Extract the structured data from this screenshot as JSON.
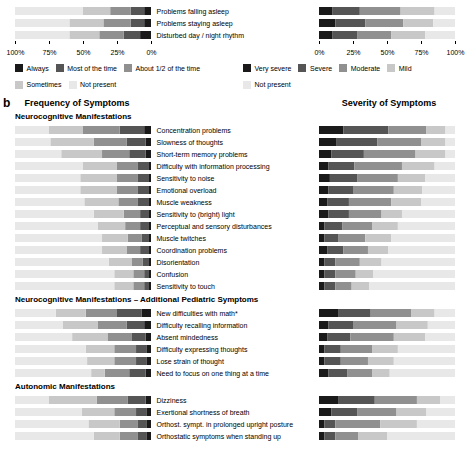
{
  "chart_data": [
    {
      "type": "bar",
      "orientation": "horizontal",
      "stacked": true,
      "legend": "bottom",
      "categories": [
        "Problems falling asleep",
        "Problems staying asleep",
        "Disturbed day / night rhythm"
      ],
      "series": [
        {
          "name": "Always",
          "color": "#1a1a1a",
          "values": [
            5,
            5,
            8
          ]
        },
        {
          "name": "Most of the time",
          "color": "#555555",
          "values": [
            10,
            10,
            12
          ]
        },
        {
          "name": "About 1/2 of the time",
          "color": "#909090",
          "values": [
            15,
            20,
            18
          ]
        },
        {
          "name": "Sometimes",
          "color": "#c8c8c8",
          "values": [
            20,
            25,
            22
          ]
        },
        {
          "name": "Not present",
          "color": "#e8e8e8",
          "values": [
            50,
            40,
            40
          ]
        }
      ],
      "xlim": [
        100,
        0
      ],
      "xticks": [
        {
          "value": 0,
          "label": "0%"
        },
        {
          "value": 25,
          "label": "25%"
        },
        {
          "value": 50,
          "label": "50%"
        },
        {
          "value": 75,
          "label": "75%"
        },
        {
          "value": 100,
          "label": "100%"
        }
      ]
    },
    {
      "type": "bar",
      "orientation": "horizontal",
      "stacked": true,
      "legend": "bottom",
      "categories": [
        "Problems falling asleep",
        "Problems staying asleep",
        "Disturbed day / night rhythm"
      ],
      "series": [
        {
          "name": "Very severe",
          "color": "#1a1a1a",
          "values": [
            10,
            12,
            10
          ]
        },
        {
          "name": "Severe",
          "color": "#555555",
          "values": [
            20,
            22,
            18
          ]
        },
        {
          "name": "Moderate",
          "color": "#909090",
          "values": [
            30,
            28,
            25
          ]
        },
        {
          "name": "Mild",
          "color": "#c8c8c8",
          "values": [
            25,
            22,
            25
          ]
        },
        {
          "name": "Not present",
          "color": "#e8e8e8",
          "values": [
            15,
            16,
            22
          ]
        }
      ],
      "xlim": [
        0,
        100
      ],
      "xticks": [
        {
          "value": 0,
          "label": "0%"
        },
        {
          "value": 25,
          "label": "25%"
        },
        {
          "value": 50,
          "label": "50%"
        },
        {
          "value": 75,
          "label": "75%"
        },
        {
          "value": 100,
          "label": "100%"
        }
      ]
    },
    {
      "type": "bar",
      "orientation": "horizontal",
      "stacked": true,
      "tick_labels": "y",
      "annotations": [
        "b"
      ],
      "title": "Frequency of Symptoms",
      "subtitle": "Neurocognitive Manifestations",
      "categories": [
        "Concentration problems",
        "Slowness of thoughts",
        "Short-term memory problems",
        "Difficulty with information processing",
        "Sensitivity to noise",
        "Emotional overload",
        "Muscle weakness",
        "Sensitivity to (bright) light",
        "Perceptual and sensory disturbances",
        "Muscle twitches",
        "Coordination problems",
        "Disorientation",
        "Confusion",
        "Sensitivity to touch"
      ],
      "series": [
        {
          "name": "Always",
          "color": "#1a1a1a",
          "values": [
            5,
            4,
            4,
            2,
            2,
            2,
            2,
            2,
            2,
            2,
            2,
            2,
            2,
            2
          ]
        },
        {
          "name": "Most of the time",
          "color": "#555555",
          "values": [
            18,
            14,
            12,
            8,
            8,
            8,
            8,
            6,
            6,
            5,
            6,
            4,
            3,
            3
          ]
        },
        {
          "name": "About 1/2 of the time",
          "color": "#909090",
          "values": [
            27,
            24,
            20,
            15,
            15,
            15,
            14,
            12,
            11,
            10,
            10,
            8,
            8,
            8
          ]
        },
        {
          "name": "Sometimes",
          "color": "#c8c8c8",
          "values": [
            25,
            32,
            30,
            25,
            27,
            27,
            25,
            22,
            20,
            19,
            18,
            17,
            14,
            14
          ]
        },
        {
          "name": "Not present",
          "color": "#e8e8e8",
          "values": [
            25,
            26,
            34,
            50,
            48,
            48,
            51,
            58,
            61,
            64,
            64,
            69,
            73,
            73
          ]
        }
      ],
      "xlim": [
        100,
        0
      ]
    },
    {
      "type": "bar",
      "orientation": "horizontal",
      "stacked": true,
      "tick_labels": "y",
      "title": "Severity of Symptoms",
      "categories": [
        "Concentration problems",
        "Slowness of thoughts",
        "Short-term memory problems",
        "Difficulty with information processing",
        "Sensitivity to noise",
        "Emotional overload",
        "Muscle weakness",
        "Sensitivity to (bright) light",
        "Perceptual and sensory disturbances",
        "Muscle twitches",
        "Coordination problems",
        "Disorientation",
        "Confusion",
        "Sensitivity to touch"
      ],
      "series": [
        {
          "name": "Very severe",
          "color": "#1a1a1a",
          "values": [
            18,
            13,
            9,
            7,
            8,
            7,
            6,
            7,
            4,
            4,
            6,
            4,
            4,
            4
          ]
        },
        {
          "name": "Severe",
          "color": "#555555",
          "values": [
            33,
            30,
            24,
            19,
            20,
            18,
            16,
            15,
            13,
            10,
            12,
            8,
            8,
            8
          ]
        },
        {
          "name": "Moderate",
          "color": "#909090",
          "values": [
            28,
            32,
            38,
            35,
            30,
            30,
            31,
            24,
            22,
            20,
            18,
            18,
            15,
            12
          ]
        },
        {
          "name": "Mild",
          "color": "#c8c8c8",
          "values": [
            14,
            18,
            22,
            24,
            20,
            21,
            22,
            15,
            19,
            19,
            15,
            16,
            13,
            13
          ]
        },
        {
          "name": "Not present",
          "color": "#e8e8e8",
          "values": [
            7,
            7,
            7,
            15,
            22,
            24,
            25,
            39,
            42,
            47,
            49,
            54,
            60,
            63
          ]
        }
      ],
      "xlim": [
        0,
        100
      ]
    },
    {
      "type": "bar",
      "orientation": "horizontal",
      "stacked": true,
      "tick_labels": "y",
      "subtitle": "Neurocognitive Manifestations – Additional Pediatric Symptoms",
      "categories": [
        "New difficulties with math*",
        "Difficulty recalling information",
        "Absent mindedness",
        "Difficulty expressing thoughts",
        "Lose strain of thought",
        "Need to focus on one thing at a time"
      ],
      "series": [
        {
          "name": "Always",
          "color": "#1a1a1a",
          "values": [
            7,
            5,
            4,
            3,
            3,
            4
          ]
        },
        {
          "name": "Most of the time",
          "color": "#555555",
          "values": [
            18,
            13,
            10,
            8,
            8,
            12
          ]
        },
        {
          "name": "About 1/2 of the time",
          "color": "#909090",
          "values": [
            23,
            21,
            18,
            16,
            16,
            18
          ]
        },
        {
          "name": "Sometimes",
          "color": "#c8c8c8",
          "values": [
            22,
            26,
            26,
            21,
            20,
            10
          ]
        },
        {
          "name": "Not present",
          "color": "#e8e8e8",
          "values": [
            30,
            35,
            42,
            52,
            53,
            56
          ]
        }
      ],
      "xlim": [
        100,
        0
      ]
    },
    {
      "type": "bar",
      "orientation": "horizontal",
      "stacked": true,
      "tick_labels": "y",
      "categories": [
        "New difficulties with math*",
        "Difficulty recalling information",
        "Absent mindedness",
        "Difficulty expressing thoughts",
        "Lose strain of thought",
        "Need to focus on one thing at a time"
      ],
      "series": [
        {
          "name": "Very severe",
          "color": "#1a1a1a",
          "values": [
            14,
            7,
            6,
            4,
            4,
            7
          ]
        },
        {
          "name": "Severe",
          "color": "#555555",
          "values": [
            24,
            18,
            17,
            12,
            12,
            14
          ]
        },
        {
          "name": "Moderate",
          "color": "#909090",
          "values": [
            30,
            32,
            32,
            23,
            20,
            18
          ]
        },
        {
          "name": "Mild",
          "color": "#c8c8c8",
          "values": [
            17,
            23,
            23,
            19,
            19,
            13
          ]
        },
        {
          "name": "Not present",
          "color": "#e8e8e8",
          "values": [
            15,
            20,
            22,
            42,
            45,
            48
          ]
        }
      ],
      "xlim": [
        0,
        100
      ]
    },
    {
      "type": "bar",
      "orientation": "horizontal",
      "stacked": true,
      "tick_labels": "y",
      "subtitle": "Autonomic Manifestations",
      "categories": [
        "Dizziness",
        "Exertional shortness of breath",
        "Orthost. sympt. in prolonged upright posture",
        "Orthostatic symptoms when standing up"
      ],
      "series": [
        {
          "name": "Always",
          "color": "#1a1a1a",
          "values": [
            4,
            3,
            3,
            3
          ]
        },
        {
          "name": "Most of the time",
          "color": "#555555",
          "values": [
            13,
            8,
            7,
            7
          ]
        },
        {
          "name": "About 1/2 of the time",
          "color": "#909090",
          "values": [
            23,
            16,
            13,
            13
          ]
        },
        {
          "name": "Sometimes",
          "color": "#c8c8c8",
          "values": [
            35,
            24,
            23,
            19
          ]
        },
        {
          "name": "Not present",
          "color": "#e8e8e8",
          "values": [
            25,
            49,
            54,
            58
          ]
        }
      ],
      "xlim": [
        100,
        0
      ]
    },
    {
      "type": "bar",
      "orientation": "horizontal",
      "stacked": true,
      "tick_labels": "y",
      "categories": [
        "Dizziness",
        "Exertional shortness of breath",
        "Orthost. sympt. in prolonged upright posture",
        "Orthostatic symptoms when standing up"
      ],
      "series": [
        {
          "name": "Very severe",
          "color": "#1a1a1a",
          "values": [
            14,
            9,
            4,
            4
          ]
        },
        {
          "name": "Severe",
          "color": "#555555",
          "values": [
            27,
            19,
            8,
            8
          ]
        },
        {
          "name": "Moderate",
          "color": "#909090",
          "values": [
            31,
            29,
            33,
            17
          ]
        },
        {
          "name": "Mild",
          "color": "#c8c8c8",
          "values": [
            17,
            22,
            27,
            21
          ]
        },
        {
          "name": "Not present",
          "color": "#e8e8e8",
          "values": [
            11,
            21,
            28,
            50
          ]
        }
      ],
      "xlim": [
        0,
        100
      ]
    }
  ]
}
